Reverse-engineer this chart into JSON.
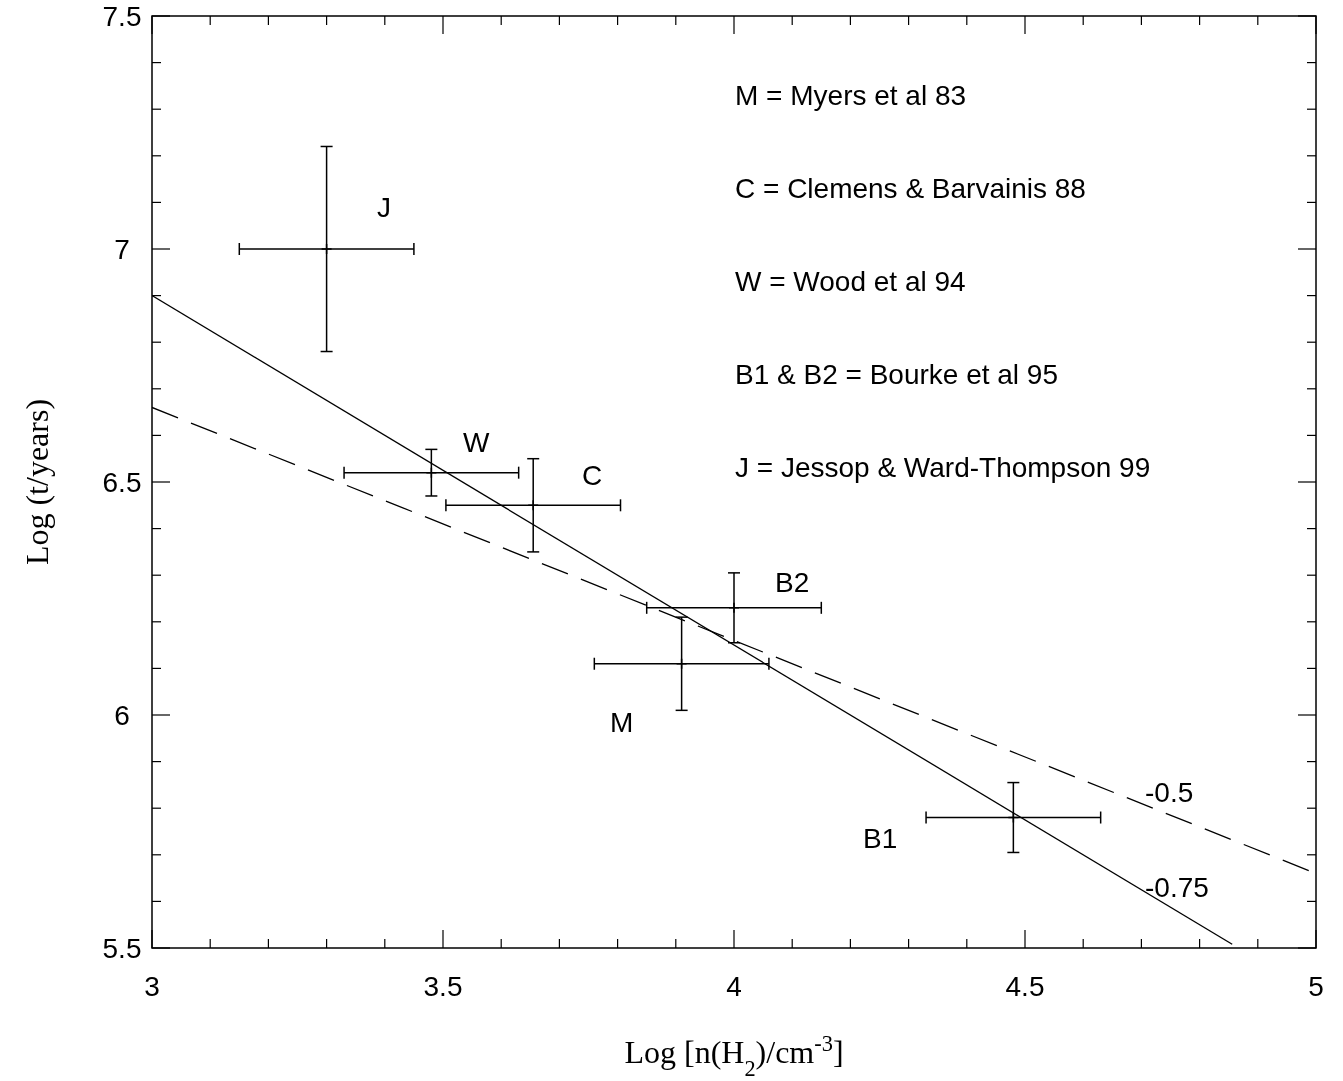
{
  "chart_data": {
    "type": "scatter",
    "xlabel": "Log [n(H$_{2}$)/cm$^{-3}$]",
    "ylabel": "Log (t/years)",
    "xlim": [
      3,
      5
    ],
    "ylim": [
      5.5,
      7.5
    ],
    "xticks": [
      3,
      {
        "value": 3.1,
        "label": null
      },
      {
        "value": 3.2,
        "label": null
      },
      {
        "value": 3.3,
        "label": null
      },
      {
        "value": 3.4,
        "label": null
      },
      3.5,
      {
        "value": 3.6,
        "label": null
      },
      {
        "value": 3.7,
        "label": null
      },
      {
        "value": 3.8,
        "label": null
      },
      {
        "value": 3.9,
        "label": null
      },
      4,
      {
        "value": 4.1,
        "label": null
      },
      {
        "value": 4.2,
        "label": null
      },
      {
        "value": 4.3,
        "label": null
      },
      {
        "value": 4.4,
        "label": null
      },
      4.5,
      {
        "value": 4.6,
        "label": null
      },
      {
        "value": 4.7,
        "label": null
      },
      {
        "value": 4.8,
        "label": null
      },
      {
        "value": 4.9,
        "label": null
      },
      5
    ],
    "yticks": [
      5.5,
      {
        "value": 5.6,
        "label": null
      },
      {
        "value": 5.7,
        "label": null
      },
      {
        "value": 5.8,
        "label": null
      },
      {
        "value": 5.9,
        "label": null
      },
      6,
      {
        "value": 6.1,
        "label": null
      },
      {
        "value": 6.2,
        "label": null
      },
      {
        "value": 6.3,
        "label": null
      },
      {
        "value": 6.4,
        "label": null
      },
      6.5,
      {
        "value": 6.6,
        "label": null
      },
      {
        "value": 6.7,
        "label": null
      },
      {
        "value": 6.8,
        "label": null
      },
      {
        "value": 6.9,
        "label": null
      },
      7,
      {
        "value": 7.1,
        "label": null
      },
      {
        "value": 7.2,
        "label": null
      },
      {
        "value": 7.3,
        "label": null
      },
      {
        "value": 7.4,
        "label": null
      },
      7.5
    ],
    "series": [
      {
        "color": "#000000",
        "marker": "cross",
        "x": [
          3.3,
          3.48,
          3.655,
          4.0,
          3.91,
          4.48
        ],
        "values": [
          7.0,
          6.52,
          6.45,
          6.23,
          6.11,
          5.78
        ],
        "errors": [
          0.22,
          0.05,
          0.1,
          0.075,
          0.1,
          0.075
        ],
        "xerrors": [
          0.15,
          0.15,
          0.15,
          0.15,
          0.15,
          0.15
        ]
      },
      {
        "type": "line",
        "color": "#000000",
        "line_style": "solid",
        "marker": "none",
        "x": [
          3,
          4.856
        ],
        "values": [
          6.9,
          5.508
        ]
      },
      {
        "type": "line",
        "color": "#000000",
        "line_style": "dashed",
        "marker": "none",
        "x": [
          3,
          5
        ],
        "values": [
          6.66,
          5.66
        ]
      }
    ],
    "annotations": [
      "M = Myers et al 83",
      "C = Clemens & Barvainis 88",
      "W = Wood et al 94",
      "B1 & B2 = Bourke et al 95",
      "J = Jessop & Ward-Thompson 99",
      "J",
      "W",
      "C",
      "B2",
      "M",
      "B1",
      "-0.5",
      "-0.75"
    ]
  }
}
